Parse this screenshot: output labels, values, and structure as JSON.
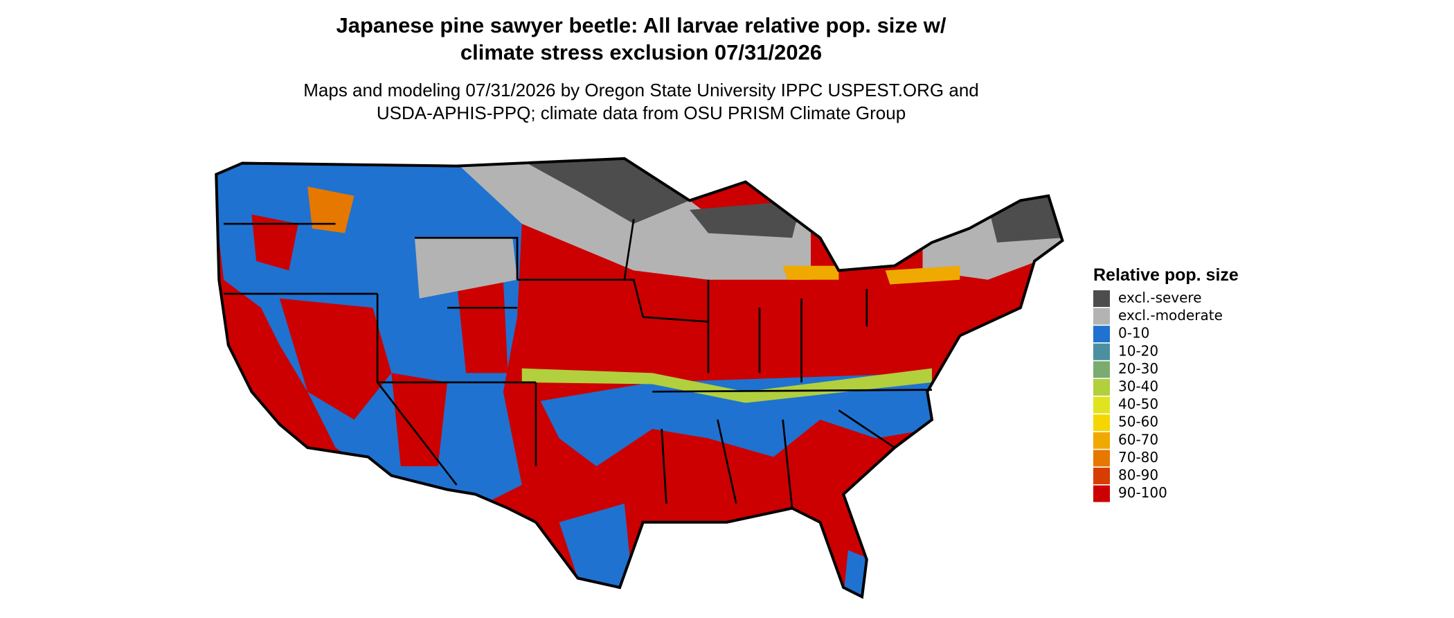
{
  "header": {
    "title": [
      "Japanese pine sawyer beetle: All larvae relative pop. size w/",
      "climate stress exclusion 07/31/2026"
    ],
    "subtitle": [
      "Maps and modeling 07/31/2026 by Oregon State University IPPC USPEST.ORG and",
      "USDA-APHIS-PPQ; climate data from OSU PRISM Climate Group"
    ]
  },
  "legend": {
    "title": "Relative pop. size",
    "items": [
      {
        "label": "excl.-severe",
        "color": "#4d4d4d"
      },
      {
        "label": "excl.-moderate",
        "color": "#b3b3b3"
      },
      {
        "label": "0-10",
        "color": "#1f72d0"
      },
      {
        "label": "10-20",
        "color": "#4a90a0"
      },
      {
        "label": "20-30",
        "color": "#7aab70"
      },
      {
        "label": "30-40",
        "color": "#b2cf3e"
      },
      {
        "label": "40-50",
        "color": "#e0e41e"
      },
      {
        "label": "50-60",
        "color": "#f6d600"
      },
      {
        "label": "60-70",
        "color": "#f0a900"
      },
      {
        "label": "70-80",
        "color": "#e67800"
      },
      {
        "label": "80-90",
        "color": "#d73d00"
      },
      {
        "label": "90-100",
        "color": "#cc0000"
      }
    ]
  }
}
